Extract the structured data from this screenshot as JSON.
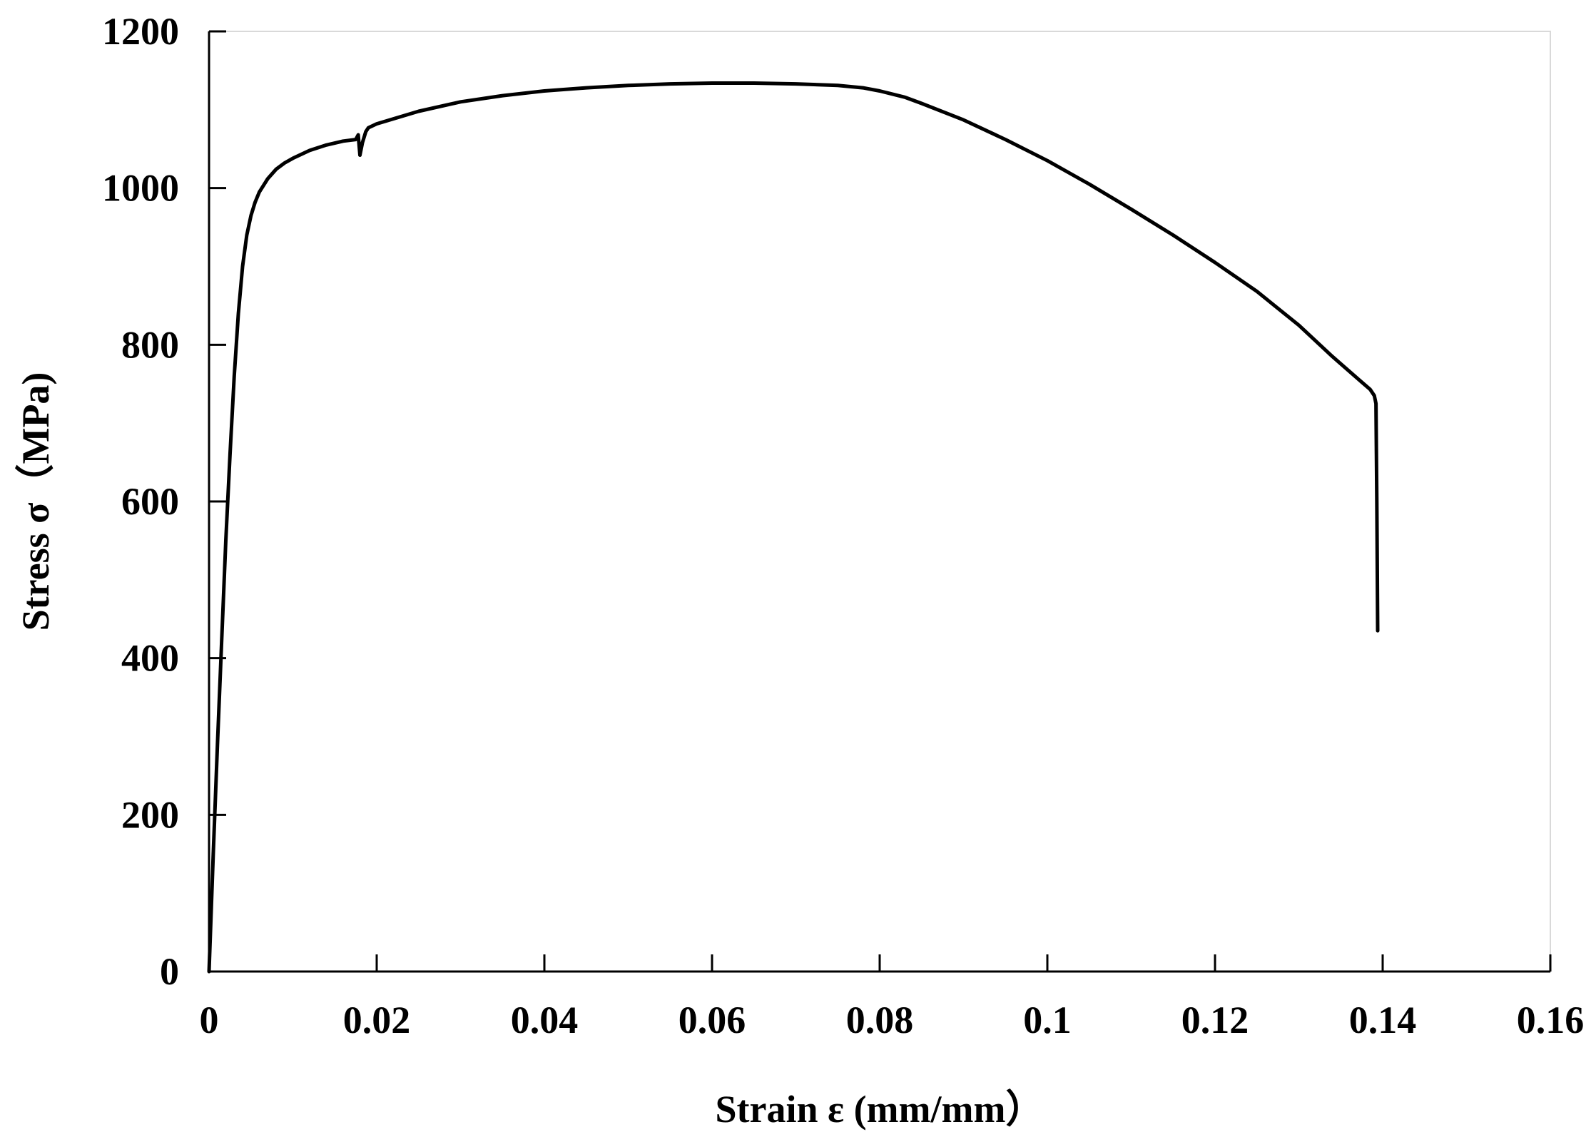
{
  "chart_data": {
    "type": "line",
    "title": "",
    "xlabel": "Strain ε (mm/mm）",
    "ylabel": "Stress σ（MPa)",
    "xlim": [
      0,
      0.16
    ],
    "ylim": [
      0,
      1200
    ],
    "x_ticks": [
      0,
      0.02,
      0.04,
      0.06,
      0.08,
      0.1,
      0.12,
      0.14,
      0.16
    ],
    "x_tick_labels": [
      "0",
      "0.02",
      "0.04",
      "0.06",
      "0.08",
      "0.1",
      "0.12",
      "0.14",
      "0.16"
    ],
    "y_ticks": [
      0,
      200,
      400,
      600,
      800,
      1000,
      1200
    ],
    "y_tick_labels": [
      "0",
      "200",
      "400",
      "600",
      "800",
      "1000",
      "1200"
    ],
    "grid": false,
    "legend": "none",
    "line_color": "#000000",
    "series": [
      {
        "x": [
          0,
          0.0005,
          0.001,
          0.0015,
          0.002,
          0.0025,
          0.003,
          0.0035,
          0.004,
          0.0045,
          0.005,
          0.0055,
          0.006,
          0.007,
          0.008,
          0.009,
          0.01,
          0.012,
          0.014,
          0.016,
          0.0175,
          0.0178,
          0.018,
          0.0183,
          0.0187,
          0.019,
          0.02,
          0.025,
          0.03,
          0.035,
          0.04,
          0.045,
          0.05,
          0.055,
          0.06,
          0.065,
          0.07,
          0.075,
          0.078,
          0.08,
          0.083,
          0.085,
          0.09,
          0.095,
          0.1,
          0.105,
          0.11,
          0.115,
          0.12,
          0.125,
          0.13,
          0.134,
          0.137,
          0.1385,
          0.139,
          0.1392,
          0.1393,
          0.1394
        ],
        "y": [
          0,
          150,
          290,
          420,
          550,
          660,
          760,
          840,
          900,
          940,
          965,
          982,
          995,
          1012,
          1024,
          1032,
          1038,
          1048,
          1055,
          1060,
          1062,
          1068,
          1042,
          1058,
          1072,
          1077,
          1082,
          1098,
          1110,
          1118,
          1124,
          1128,
          1131,
          1133,
          1134,
          1134,
          1133,
          1131,
          1128,
          1124,
          1116,
          1108,
          1087,
          1062,
          1035,
          1005,
          973,
          940,
          905,
          868,
          825,
          785,
          757,
          743,
          735,
          725,
          600,
          435
        ]
      }
    ]
  }
}
